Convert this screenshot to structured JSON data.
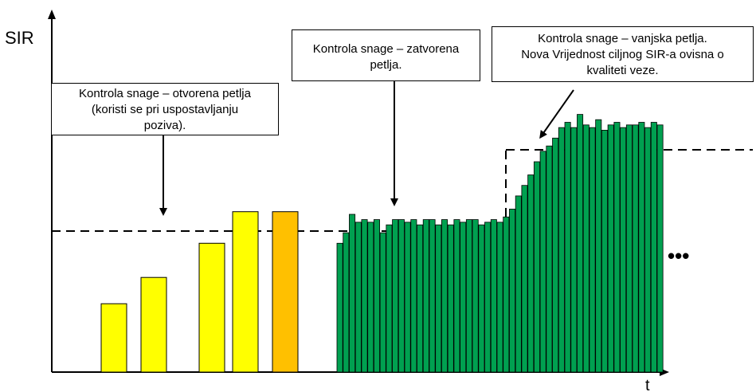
{
  "axis": {
    "y_label": "SIR",
    "x_label": "t"
  },
  "callouts": {
    "open_loop": {
      "lines": [
        "Kontrola snage – otvorena petlja",
        "(koristi se pri uspostavljanju",
        "poziva)."
      ]
    },
    "closed_loop": {
      "lines": [
        "Kontrola snage – zatvorena",
        "petlja."
      ]
    },
    "outer_loop": {
      "lines": [
        "Kontrola snage – vanjska petlja.",
        "Nova Vrijednost ciljnog SIR-a ovisna o",
        "kvaliteti veze."
      ]
    }
  },
  "ellipsis": "•••",
  "colors": {
    "open_loop_bars": "#ffff00",
    "final_open_loop_bar": "#ffc000",
    "closed_loop_bars": "#00a050",
    "bar_outline": "#000000",
    "target_line": "#000000"
  },
  "chart_data": {
    "type": "bar",
    "open_loop_values": [
      26,
      36,
      49,
      61,
      61
    ],
    "closed_loop_values": [
      49,
      53,
      60,
      57,
      58,
      57,
      58,
      53,
      56,
      58,
      58,
      57,
      58,
      56,
      58,
      58,
      56,
      58,
      56,
      58,
      57,
      58,
      58,
      56,
      57,
      58,
      57,
      59,
      62,
      67,
      71,
      75,
      80,
      84,
      86,
      89,
      93,
      95,
      93,
      98,
      94,
      93,
      96,
      92,
      94,
      95,
      93,
      94,
      94,
      95,
      93,
      95,
      94
    ],
    "initial_target_sir": 58,
    "new_target_sir": 92,
    "target_change_index": 30
  }
}
